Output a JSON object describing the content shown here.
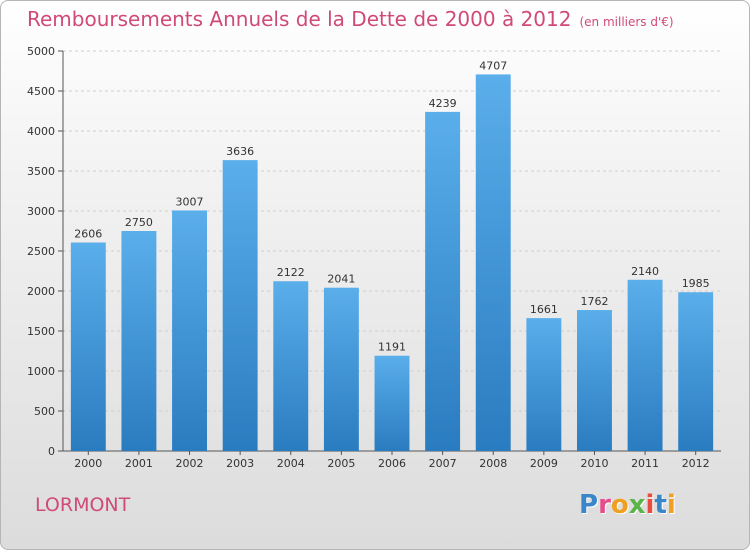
{
  "header": {
    "title": "Remboursements Annuels de la Dette de 2000 à 2012",
    "unit": "(en milliers d'€)"
  },
  "footer": {
    "commune": "LORMONT",
    "logo": "Proxiti"
  },
  "colors": {
    "title": "#d04a76",
    "bar_top": "#5aaeea",
    "bar_bottom": "#2a7cc0",
    "grid": "#cfcfcf",
    "axis": "#555555"
  },
  "logo_colors": [
    "#3a86c8",
    "#e84c8b",
    "#f0a020",
    "#5ab548",
    "#e84c3c",
    "#3a86c8",
    "#f0a020"
  ],
  "chart_data": {
    "type": "bar",
    "categories": [
      "2000",
      "2001",
      "2002",
      "2003",
      "2004",
      "2005",
      "2006",
      "2007",
      "2008",
      "2009",
      "2010",
      "2011",
      "2012"
    ],
    "values": [
      2606,
      2750,
      3007,
      3636,
      2122,
      2041,
      1191,
      4239,
      4707,
      1661,
      1762,
      2140,
      1985
    ],
    "ylim": [
      0,
      5000
    ],
    "yticks": [
      0,
      500,
      1000,
      1500,
      2000,
      2500,
      3000,
      3500,
      4000,
      4500,
      5000
    ],
    "grid": true,
    "data_labels": true
  }
}
